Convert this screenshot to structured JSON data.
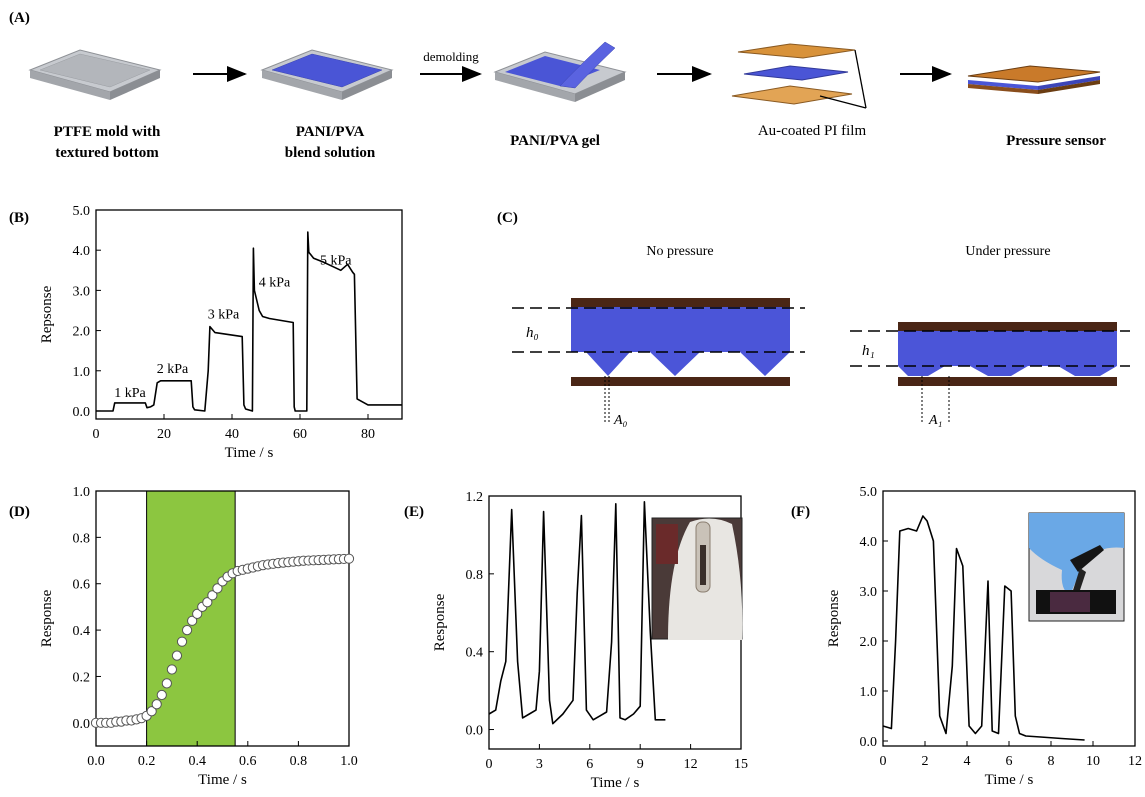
{
  "panel_labels": {
    "a": "(A)",
    "b": "(B)",
    "c": "(C)",
    "d": "(D)",
    "e": "(E)",
    "f": "(F)"
  },
  "panel_a": {
    "steps": [
      {
        "line1": "PTFE mold with",
        "line2": "textured bottom"
      },
      {
        "line1": "PANI/PVA",
        "line2": "blend solution"
      },
      {
        "line1": "PANI/PVA gel",
        "line2": ""
      },
      {
        "line1": "Au-coated PI film",
        "line2": ""
      },
      {
        "line1": "Pressure sensor",
        "line2": ""
      }
    ],
    "arrow_label": "demolding",
    "colors": {
      "mold": "#b9bcc0",
      "gel": "#4a55d6",
      "film": "#d8923a"
    }
  },
  "panel_c": {
    "left_title": "No pressure",
    "right_title": "Under pressure",
    "h0": "h₀",
    "h1": "h₁",
    "a0": "A₀",
    "a1": "A₁",
    "colors": {
      "gel": "#4b55d8",
      "electrode": "#4a2616"
    }
  },
  "chart_data": [
    {
      "panel": "B",
      "type": "line",
      "xlabel": "Time / s",
      "ylabel": "Repsonse",
      "xlim": [
        0,
        90
      ],
      "ylim": [
        -0.2,
        5.0
      ],
      "xticks": [
        "0",
        "20",
        "40",
        "60",
        "80"
      ],
      "yticks": [
        "0.0",
        "1.0",
        "2.0",
        "3.0",
        "4.0",
        "5.0"
      ],
      "annotations": [
        {
          "text": "1 kPa",
          "x": 10,
          "y": 0.35
        },
        {
          "text": "2 kPa",
          "x": 22.5,
          "y": 0.95
        },
        {
          "text": "3 kPa",
          "x": 37.5,
          "y": 2.3
        },
        {
          "text": "4 kPa",
          "x": 52.5,
          "y": 3.1
        },
        {
          "text": "5 kPa",
          "x": 70.5,
          "y": 3.65
        }
      ],
      "series": [
        {
          "x": [
            0,
            5,
            5.5,
            14.5,
            15,
            16,
            17,
            18,
            19,
            28,
            28.5,
            29,
            32,
            33,
            33.5,
            35,
            43,
            43.5,
            44,
            46,
            46.3,
            46.6,
            48,
            49,
            51,
            58,
            58.3,
            58.6,
            59,
            61,
            62,
            62.3,
            62.6,
            64,
            67,
            72,
            74,
            75.5,
            76,
            76.8,
            80,
            90
          ],
          "y": [
            0.0,
            0.0,
            0.2,
            0.2,
            0.08,
            0.1,
            0.15,
            0.7,
            0.75,
            0.75,
            0.1,
            0.03,
            0.0,
            1.0,
            2.1,
            1.95,
            1.85,
            0.15,
            0.05,
            0.0,
            4.05,
            3.0,
            2.5,
            2.35,
            2.3,
            2.2,
            0.1,
            0.0,
            0.0,
            0.0,
            0.0,
            4.45,
            3.95,
            3.8,
            3.7,
            3.5,
            3.65,
            3.45,
            3.4,
            0.3,
            0.15,
            0.15
          ]
        }
      ]
    },
    {
      "panel": "D",
      "type": "scatter",
      "xlabel": "Time / s",
      "ylabel": "Response",
      "xlim": [
        0.0,
        1.0
      ],
      "ylim": [
        -0.1,
        1.0
      ],
      "xticks": [
        "0.0",
        "0.2",
        "0.4",
        "0.6",
        "0.8",
        "1.0"
      ],
      "yticks": [
        "0.0",
        "0.2",
        "0.4",
        "0.6",
        "0.8",
        "1.0"
      ],
      "highlight": {
        "x0": 0.2,
        "x1": 0.55,
        "color": "#8cc640"
      },
      "series": [
        {
          "x": [
            0.0,
            0.02,
            0.04,
            0.06,
            0.08,
            0.1,
            0.12,
            0.14,
            0.16,
            0.18,
            0.2,
            0.22,
            0.24,
            0.26,
            0.28,
            0.3,
            0.32,
            0.34,
            0.36,
            0.38,
            0.4,
            0.42,
            0.44,
            0.46,
            0.48,
            0.5,
            0.52,
            0.54,
            0.56,
            0.58,
            0.6,
            0.62,
            0.64,
            0.66,
            0.68,
            0.7,
            0.72,
            0.74,
            0.76,
            0.78,
            0.8,
            0.82,
            0.84,
            0.86,
            0.88,
            0.9,
            0.92,
            0.94,
            0.96,
            0.98,
            1.0
          ],
          "y": [
            0.0,
            0.0,
            0.0,
            0.0,
            0.005,
            0.005,
            0.01,
            0.01,
            0.015,
            0.02,
            0.03,
            0.05,
            0.08,
            0.12,
            0.17,
            0.23,
            0.29,
            0.35,
            0.4,
            0.44,
            0.47,
            0.5,
            0.52,
            0.55,
            0.58,
            0.61,
            0.63,
            0.645,
            0.655,
            0.66,
            0.665,
            0.67,
            0.675,
            0.68,
            0.683,
            0.686,
            0.689,
            0.691,
            0.693,
            0.695,
            0.697,
            0.699,
            0.7,
            0.701,
            0.702,
            0.703,
            0.704,
            0.705,
            0.706,
            0.707,
            0.708
          ]
        }
      ]
    },
    {
      "panel": "E",
      "type": "line",
      "xlabel": "Time / s",
      "ylabel": "Response",
      "xlim": [
        0,
        15
      ],
      "ylim": [
        -0.1,
        1.2
      ],
      "xticks": [
        "0",
        "3",
        "6",
        "9",
        "12",
        "15"
      ],
      "yticks": [
        "0.0",
        "0.4",
        "0.8",
        "1.2"
      ],
      "series": [
        {
          "x": [
            0,
            0.4,
            0.7,
            1.0,
            1.35,
            1.7,
            2.0,
            2.4,
            2.8,
            3.0,
            3.25,
            3.6,
            3.8,
            4.4,
            5.0,
            5.25,
            5.5,
            5.8,
            6.2,
            6.6,
            7.0,
            7.3,
            7.55,
            7.8,
            8.1,
            8.6,
            9.0,
            9.25,
            9.6,
            9.9,
            10.5
          ],
          "y": [
            0.08,
            0.1,
            0.25,
            0.35,
            1.13,
            0.35,
            0.06,
            0.08,
            0.1,
            0.3,
            1.12,
            0.15,
            0.03,
            0.08,
            0.15,
            0.7,
            1.1,
            0.1,
            0.05,
            0.07,
            0.09,
            0.45,
            1.16,
            0.06,
            0.05,
            0.08,
            0.12,
            1.17,
            0.5,
            0.05,
            0.05
          ]
        }
      ]
    },
    {
      "panel": "F",
      "type": "line",
      "xlabel": "Time / s",
      "ylabel": "Response",
      "xlim": [
        0,
        12
      ],
      "ylim": [
        -0.1,
        5.0
      ],
      "xticks": [
        "0",
        "2",
        "4",
        "6",
        "8",
        "10",
        "12"
      ],
      "yticks": [
        "0.0",
        "1.0",
        "2.0",
        "3.0",
        "4.0",
        "5.0"
      ],
      "series": [
        {
          "x": [
            0.0,
            0.4,
            0.6,
            0.8,
            1.2,
            1.6,
            1.9,
            2.1,
            2.4,
            2.7,
            3.0,
            3.3,
            3.5,
            3.8,
            4.1,
            4.4,
            4.7,
            5.0,
            5.2,
            5.5,
            5.8,
            6.1,
            6.3,
            6.5,
            6.8,
            7.5,
            8.5,
            9.6
          ],
          "y": [
            0.3,
            0.25,
            2.0,
            4.2,
            4.25,
            4.2,
            4.5,
            4.4,
            4.0,
            0.5,
            0.15,
            1.5,
            3.85,
            3.5,
            0.3,
            0.15,
            0.3,
            3.2,
            0.2,
            0.15,
            3.1,
            3.0,
            0.5,
            0.15,
            0.1,
            0.08,
            0.05,
            0.02
          ]
        }
      ]
    }
  ]
}
